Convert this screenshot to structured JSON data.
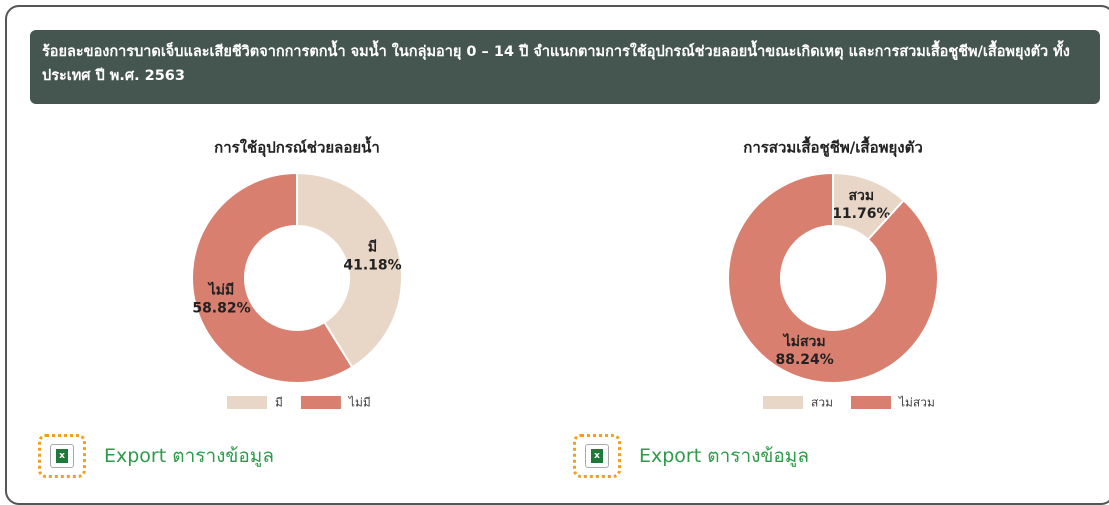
{
  "header": {
    "title": "ร้อยละของการบาดเจ็บและเสียชีวิตจากการตกน้ำ จมน้ำ ในกลุ่มอายุ 0 – 14 ปี จำแนกตามการใช้อุปกรณ์ช่วยลอยน้ำขณะเกิดเหตุ และการสวมเสื้อชูชีพ/เสื้อพยุงตัว ทั้งประเทศ ปี พ.ศ. 2563"
  },
  "chart_data": [
    {
      "type": "pie",
      "donut": true,
      "title": "การใช้อุปกรณ์ช่วยลอยน้ำ",
      "categories": [
        "มี",
        "ไม่มี"
      ],
      "values": [
        41.18,
        58.82
      ],
      "value_labels": [
        "41.18%",
        "58.82%"
      ],
      "colors": [
        "#e8d6c6",
        "#d97f6f"
      ],
      "legend": "bottom"
    },
    {
      "type": "pie",
      "donut": true,
      "title": "การสวมเสื้อชูชีพ/เสื้อพยุงตัว",
      "categories": [
        "สวม",
        "ไม่สวม"
      ],
      "values": [
        11.76,
        88.24
      ],
      "value_labels": [
        "11.76%",
        "88.24%"
      ],
      "colors": [
        "#e8d6c6",
        "#d97f6f"
      ],
      "legend": "bottom"
    }
  ],
  "exports": [
    "Export ตารางข้อมูล",
    "Export ตารางข้อมูล"
  ]
}
